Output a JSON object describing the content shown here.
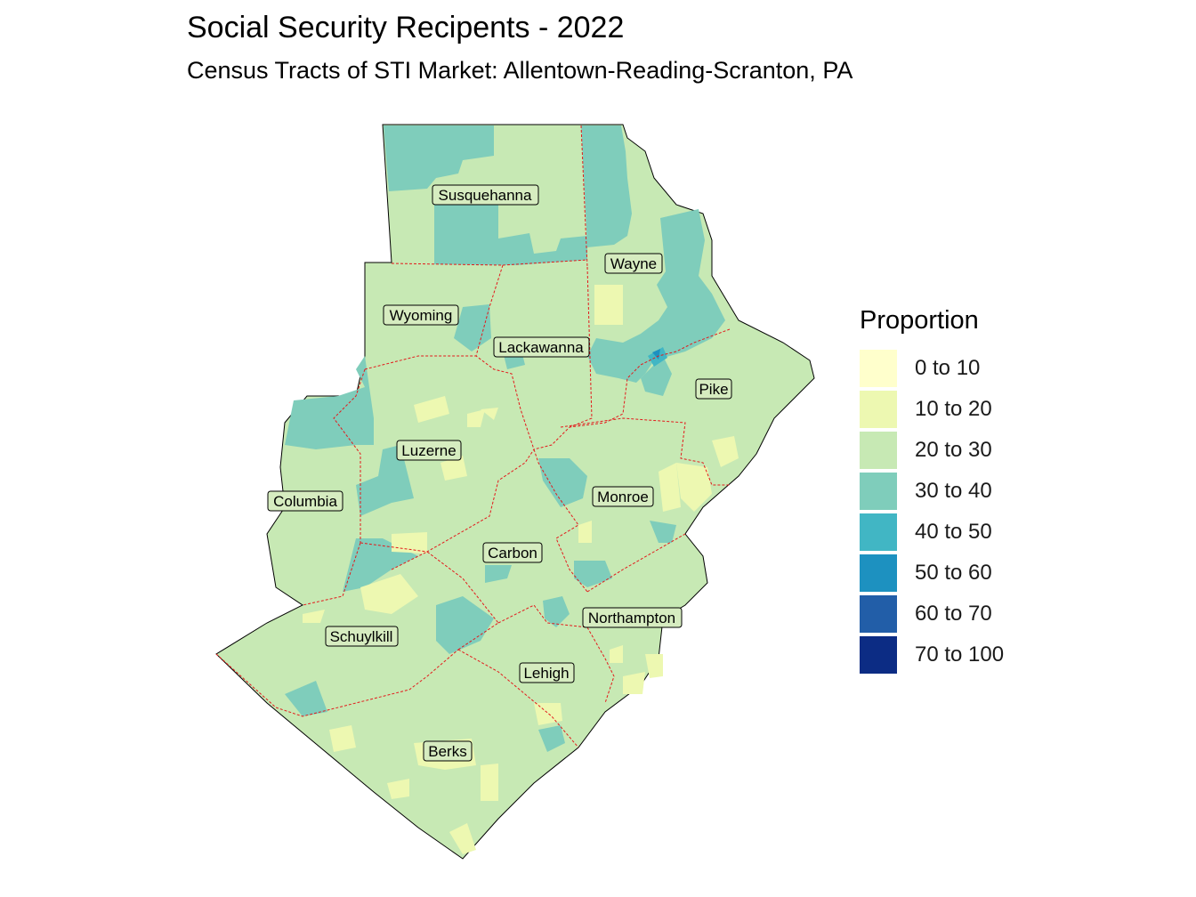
{
  "title": "Social Security Recipents - 2022",
  "subtitle": "Census Tracts of STI Market: Allentown-Reading-Scranton, PA",
  "legend": {
    "title": "Proportion",
    "items": [
      {
        "label": "0 to 10",
        "color": "#ffffcc"
      },
      {
        "label": "10 to 20",
        "color": "#edf8b1"
      },
      {
        "label": "20 to 30",
        "color": "#c7e9b4"
      },
      {
        "label": "30 to 40",
        "color": "#7fcdbb"
      },
      {
        "label": "40 to 50",
        "color": "#41b6c4"
      },
      {
        "label": "50 to 60",
        "color": "#1d91c0"
      },
      {
        "label": "60 to 70",
        "color": "#225ea8"
      },
      {
        "label": "70 to 100",
        "color": "#0c2c84"
      }
    ]
  },
  "counties": {
    "susquehanna": "Susquehanna",
    "wayne": "Wayne",
    "wyoming": "Wyoming",
    "lackawanna": "Lackawanna",
    "pike": "Pike",
    "luzerne": "Luzerne",
    "columbia": "Columbia",
    "monroe": "Monroe",
    "carbon": "Carbon",
    "northampton": "Northampton",
    "schuylkill": "Schuylkill",
    "lehigh": "Lehigh",
    "berks": "Berks"
  },
  "colors": {
    "county_border": "#e31a1c",
    "base_fill": "#c7e9b4",
    "outline": "#000000"
  }
}
